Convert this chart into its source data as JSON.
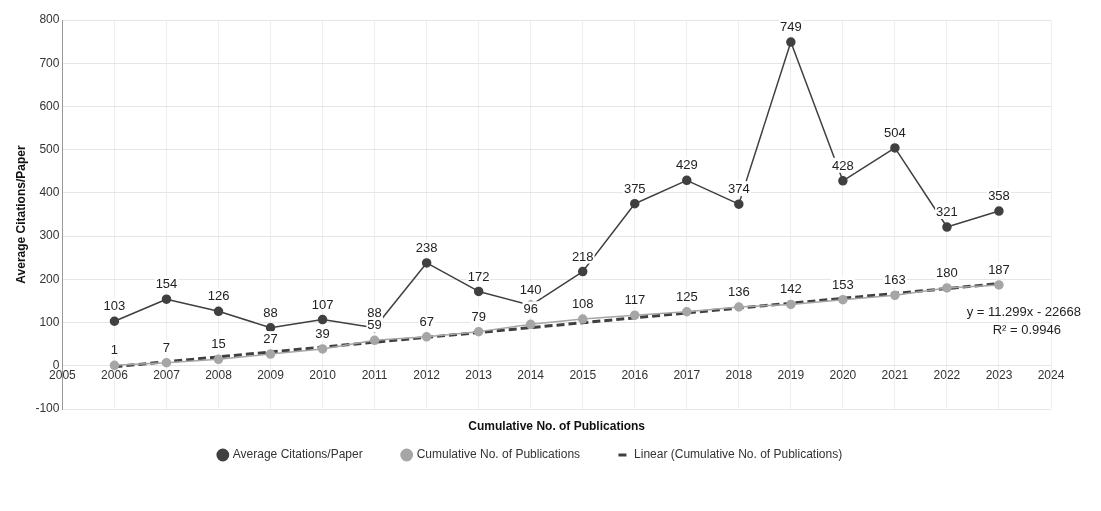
{
  "chart_data": {
    "type": "line",
    "xlabel": "Cumulative No. of Publications",
    "ylabel": "Average Citations/Paper",
    "x": [
      2006,
      2007,
      2008,
      2009,
      2010,
      2011,
      2012,
      2013,
      2014,
      2015,
      2016,
      2017,
      2018,
      2019,
      2020,
      2021,
      2022,
      2023
    ],
    "xlim": [
      2005,
      2024
    ],
    "xticks": [
      2005,
      2006,
      2007,
      2008,
      2009,
      2010,
      2011,
      2012,
      2013,
      2014,
      2015,
      2016,
      2017,
      2018,
      2019,
      2020,
      2021,
      2022,
      2023,
      2024
    ],
    "ylim": [
      -100,
      800
    ],
    "yticks": [
      -100,
      0,
      100,
      200,
      300,
      400,
      500,
      600,
      700,
      800
    ],
    "grid": true,
    "legend": "bottom",
    "marker": "circle",
    "series": [
      {
        "name": "Average Citations/Paper",
        "color": "#404040",
        "values": [
          103,
          154,
          126,
          88,
          107,
          88,
          238,
          172,
          140,
          218,
          375,
          429,
          374,
          749,
          428,
          504,
          321,
          358
        ],
        "value_labels": [
          "103",
          "154",
          "126",
          "88",
          "107",
          "88",
          "238",
          "172",
          "140",
          "218",
          "375",
          "429",
          "374",
          "749",
          "428",
          "504",
          "321",
          "358"
        ]
      },
      {
        "name": "Cumulative No. of Publications",
        "color": "#a6a6a6",
        "values": [
          1,
          7,
          15,
          27,
          39,
          59,
          67,
          79,
          96,
          108,
          117,
          125,
          136,
          142,
          153,
          163,
          180,
          187
        ],
        "value_labels": [
          "1",
          "7",
          "15",
          "27",
          "39",
          "59",
          "67",
          "79",
          "96",
          "108",
          "117",
          "125",
          "136",
          "142",
          "153",
          "163",
          "180",
          "187"
        ]
      },
      {
        "name": "Linear (Cumulative No. of Publications)",
        "type": "line",
        "color": "#404040",
        "line_style": "dashed",
        "marker": "none",
        "x": [
          2006,
          2023
        ],
        "values": [
          -2,
          190
        ]
      }
    ],
    "annotations": [
      "y = 11.299x - 22668",
      "R² = 0.9946"
    ]
  }
}
